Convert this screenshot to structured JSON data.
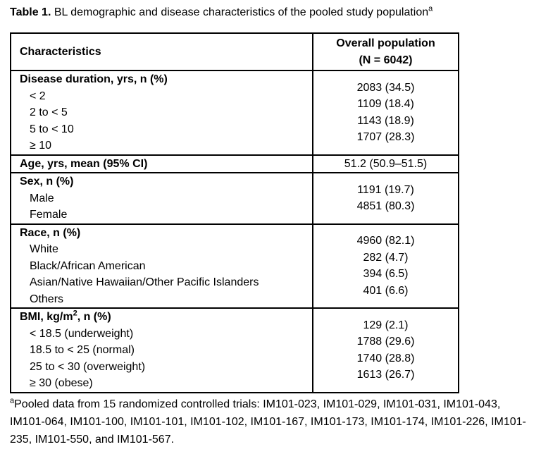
{
  "colors": {
    "text": "#000000",
    "background": "#ffffff",
    "border": "#000000"
  },
  "title": {
    "label": "Table 1.",
    "text": " BL demographic and disease characteristics of the pooled study population",
    "superscript": "a"
  },
  "table": {
    "columns": {
      "characteristics": "Characteristics",
      "population_line1": "Overall population",
      "population_line2": "(N = 6042)"
    },
    "sections": [
      {
        "header": "Disease duration, yrs, n (%)",
        "rows": [
          {
            "label": "< 2",
            "value": "2083 (34.5)"
          },
          {
            "label": "2 to < 5",
            "value": "1109 (18.4)"
          },
          {
            "label": "5 to < 10",
            "value": "1143 (18.9)"
          },
          {
            "label": "≥ 10",
            "value": "1707 (28.3)"
          }
        ]
      },
      {
        "header": "Age, yrs, mean (95% CI)",
        "value": "51.2 (50.9–51.5)"
      },
      {
        "header": "Sex, n (%)",
        "rows": [
          {
            "label": "Male",
            "value": "1191 (19.7)"
          },
          {
            "label": "Female",
            "value": "4851 (80.3)"
          }
        ]
      },
      {
        "header": "Race, n (%)",
        "rows": [
          {
            "label": "White",
            "value": "4960 (82.1)"
          },
          {
            "label": "Black/African American",
            "value": "282 (4.7)"
          },
          {
            "label": "Asian/Native Hawaiian/Other Pacific Islanders",
            "value": "394 (6.5)"
          },
          {
            "label": "Others",
            "value": "401 (6.6)"
          }
        ]
      },
      {
        "header_prefix": "BMI, kg/m",
        "header_sup": "2",
        "header_suffix": ", n (%)",
        "rows": [
          {
            "label": "< 18.5 (underweight)",
            "value": "129 (2.1)"
          },
          {
            "label": "18.5 to < 25 (normal)",
            "value": "1788 (29.6)"
          },
          {
            "label": "25 to < 30 (overweight)",
            "value": "1740 (28.8)"
          },
          {
            "label": "≥ 30 (obese)",
            "value": "1613 (26.7)"
          }
        ]
      }
    ]
  },
  "footnote": {
    "superscript": "a",
    "text": "Pooled data from 15 randomized controlled trials: IM101-023, IM101-029, IM101-031, IM101-043, IM101-064, IM101-100, IM101-101, IM101-102, IM101-167, IM101-173, IM101-174, IM101-226, IM101-235, IM101-550, and IM101-567."
  }
}
